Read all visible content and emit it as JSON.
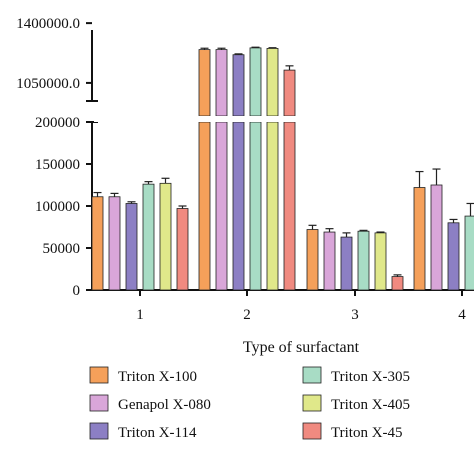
{
  "chart_data": {
    "type": "bar",
    "title": "",
    "xlabel": "Type of surfactant",
    "ylabel": "",
    "categories": [
      "1",
      "2",
      "3",
      "4"
    ],
    "y_axis_break": true,
    "lower_ylim": [
      0,
      200000
    ],
    "lower_yticks": [
      0,
      50000,
      100000,
      150000,
      200000
    ],
    "lower_ytick_labels": [
      "0",
      "50000",
      "100000",
      "150000",
      "200000"
    ],
    "upper_ylim": [
      950000,
      1430000
    ],
    "upper_yticks": [
      1050000,
      1400000
    ],
    "upper_ytick_labels": [
      "1050000.0",
      "1400000.0"
    ],
    "legend_position": "bottom",
    "grid": false,
    "series": [
      {
        "name": "Triton X-100",
        "color": "#F5A05A",
        "values": [
          111000,
          1245000,
          72000,
          122000
        ],
        "errors": [
          5000,
          8000,
          5000,
          19000
        ]
      },
      {
        "name": "Genapol X-080",
        "color": "#D9A6D9",
        "values": [
          111000,
          1245000,
          69000,
          125000
        ],
        "errors": [
          4000,
          8000,
          4000,
          19000
        ]
      },
      {
        "name": "Triton X-114",
        "color": "#8C7FC4",
        "values": [
          103000,
          1215000,
          63000,
          80000
        ],
        "errors": [
          2000,
          5000,
          5000,
          4000
        ]
      },
      {
        "name": "Triton X-305",
        "color": "#A8DCC5",
        "values": [
          126000,
          1255000,
          70000,
          88000
        ],
        "errors": [
          3000,
          4000,
          1000,
          15000
        ]
      },
      {
        "name": "Triton X-405",
        "color": "#E0E88A",
        "values": [
          127000,
          1252000,
          68000,
          null
        ],
        "errors": [
          6000,
          4000,
          1000,
          null
        ]
      },
      {
        "name": "Triton X-45",
        "color": "#F08A80",
        "values": [
          97000,
          1125000,
          16000,
          null
        ],
        "errors": [
          3000,
          25000,
          2000,
          null
        ]
      }
    ]
  }
}
